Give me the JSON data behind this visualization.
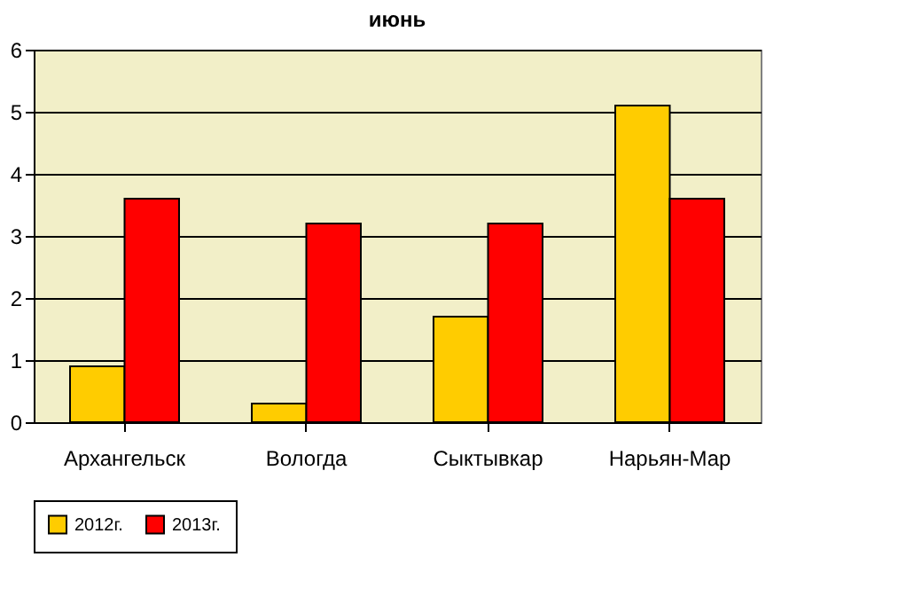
{
  "chart_data": {
    "type": "bar",
    "title": "июнь",
    "categories": [
      "Архангельск",
      "Вологда",
      "Сыктывкар",
      "Нарьян-Мар"
    ],
    "series": [
      {
        "name": "2012г.",
        "color": "#ffcc00",
        "values": [
          0.9,
          0.3,
          1.7,
          5.1
        ]
      },
      {
        "name": "2013г.",
        "color": "#ff0000",
        "values": [
          3.6,
          3.2,
          3.2,
          3.6
        ]
      }
    ],
    "ylim": [
      0,
      6
    ],
    "yticks": [
      0,
      1,
      2,
      3,
      4,
      5,
      6
    ],
    "grid": "y",
    "legend": "bottom"
  }
}
